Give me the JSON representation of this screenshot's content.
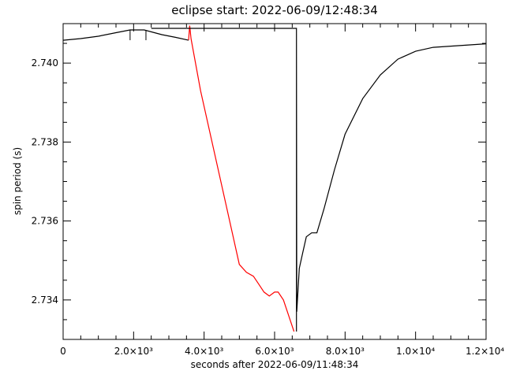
{
  "chart_data": {
    "type": "line",
    "title": "eclipse start: 2022-06-09/12:48:34",
    "xlabel": "seconds after 2022-06-09/11:48:34",
    "ylabel": "spin period (s)",
    "xlim": [
      0,
      12000
    ],
    "ylim": [
      2.733,
      2.741
    ],
    "xticks": [
      {
        "value": 0,
        "label": "0"
      },
      {
        "value": 2000,
        "label": "2.0×10³"
      },
      {
        "value": 4000,
        "label": "4.0×10³"
      },
      {
        "value": 6000,
        "label": "6.0×10³"
      },
      {
        "value": 8000,
        "label": "8.0×10³"
      },
      {
        "value": 10000,
        "label": "1.0×10⁴"
      },
      {
        "value": 12000,
        "label": "1.2×10⁴"
      }
    ],
    "yticks": [
      {
        "value": 2.734,
        "label": "2.734"
      },
      {
        "value": 2.736,
        "label": "2.736"
      },
      {
        "value": 2.738,
        "label": "2.738"
      },
      {
        "value": 2.74,
        "label": "2.740"
      }
    ],
    "grid": false,
    "series": [
      {
        "color": "#000000",
        "points": [
          [
            0,
            2.74058
          ],
          [
            500,
            2.74062
          ],
          [
            1000,
            2.74068
          ],
          [
            1500,
            2.74077
          ],
          [
            1900,
            2.74084
          ],
          [
            2300,
            2.74084
          ],
          [
            2800,
            2.74072
          ],
          [
            3200,
            2.74065
          ],
          [
            3560,
            2.74058
          ]
        ]
      },
      {
        "color": "#ff0000",
        "points": [
          [
            3560,
            2.74058
          ],
          [
            3590,
            2.74095
          ],
          [
            3630,
            2.74062
          ],
          [
            3900,
            2.7393
          ],
          [
            4200,
            2.7381
          ],
          [
            4500,
            2.7369
          ],
          [
            4800,
            2.7357
          ],
          [
            5000,
            2.7349
          ],
          [
            5200,
            2.7347
          ],
          [
            5400,
            2.7346
          ],
          [
            5550,
            2.7344
          ],
          [
            5700,
            2.7342
          ],
          [
            5850,
            2.7341
          ],
          [
            6000,
            2.7342
          ],
          [
            6100,
            2.7342
          ],
          [
            6250,
            2.734
          ],
          [
            6400,
            2.7336
          ],
          [
            6550,
            2.7332
          ]
        ]
      },
      {
        "color": "#000000",
        "points": [
          [
            6620,
            2.7332
          ],
          [
            6620,
            2.74088
          ],
          [
            2500,
            2.74088
          ],
          [
            3300,
            2.74088
          ],
          [
            6620,
            2.74088
          ],
          [
            6630,
            2.7337
          ],
          [
            6700,
            2.7348
          ],
          [
            6800,
            2.7352
          ],
          [
            6900,
            2.7356
          ],
          [
            7050,
            2.7357
          ],
          [
            7200,
            2.7357
          ],
          [
            7400,
            2.7363
          ],
          [
            7700,
            2.7373
          ],
          [
            8000,
            2.7382
          ],
          [
            8500,
            2.7391
          ],
          [
            9000,
            2.7397
          ],
          [
            9500,
            2.7401
          ],
          [
            10000,
            2.7403
          ],
          [
            10500,
            2.7404
          ],
          [
            11000,
            2.74043
          ],
          [
            11500,
            2.74046
          ],
          [
            12000,
            2.74049
          ]
        ]
      }
    ]
  }
}
